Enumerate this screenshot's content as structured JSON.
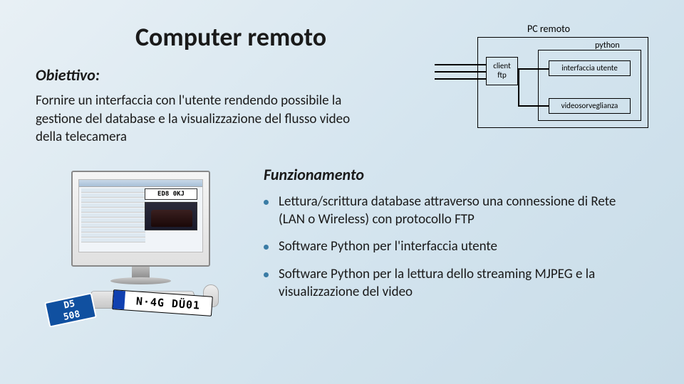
{
  "title": "Computer remoto",
  "subtitle": "Obiettivo:",
  "objective": "Fornire un interfaccia con l'utente rendendo possibile la gestione del database e la visualizzazione del flusso video della telecamera",
  "diagram": {
    "pc_label": "PC remoto",
    "client_line1": "client",
    "client_line2": "ftp",
    "python_label": "python",
    "iface_label": "interfaccia utente",
    "video_label": "videosorveglianza"
  },
  "section_title": "Funzionamento",
  "bullets": [
    "Lettura/scrittura database attraverso una connessione di Rete (LAN o Wireless) con protocollo FTP",
    "Software Python per l'interfaccia utente",
    "Software Python per la lettura dello streaming MJPEG e la visualizzazione del video"
  ],
  "computer": {
    "plate1": "ED8  0KJ",
    "plate_blue_1": "D5",
    "plate_blue_2": "508",
    "plate_white": "N·4G DÜ01"
  },
  "colors": {
    "bullet": "#3a7ca5"
  }
}
